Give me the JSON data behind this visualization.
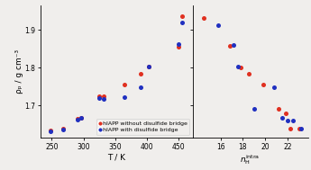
{
  "left_red_x": [
    248,
    268,
    290,
    296,
    325,
    332,
    365,
    390,
    403,
    450,
    456
  ],
  "left_red_y": [
    1.635,
    1.638,
    1.665,
    1.668,
    1.725,
    1.725,
    1.755,
    1.783,
    1.802,
    1.855,
    1.935
  ],
  "left_blue_x": [
    248,
    268,
    290,
    296,
    325,
    332,
    365,
    390,
    403,
    450,
    456
  ],
  "left_blue_y": [
    1.632,
    1.636,
    1.662,
    1.668,
    1.72,
    1.718,
    1.722,
    1.748,
    1.802,
    1.863,
    1.92
  ],
  "right_red_x": [
    14.5,
    16.8,
    17.8,
    18.5,
    19.8,
    21.2,
    21.8,
    22.2,
    23.0
  ],
  "right_red_y": [
    1.932,
    1.858,
    1.8,
    1.783,
    1.755,
    1.692,
    1.68,
    1.638,
    1.638
  ],
  "right_blue_x": [
    15.8,
    17.2,
    17.6,
    19.0,
    20.8,
    21.5,
    22.0,
    22.5,
    23.2
  ],
  "right_blue_y": [
    1.912,
    1.86,
    1.802,
    1.692,
    1.748,
    1.668,
    1.66,
    1.66,
    1.638
  ],
  "ylabel": "ρₚ / g cm⁻³",
  "xlabel_left": "T / K",
  "legend_red": "hIAPP without disulfide bridge",
  "legend_blue": "hIAPP with disulfide bridge",
  "red_color": "#e03020",
  "blue_color": "#2030c0",
  "bg_color": "#f0eeec",
  "ylim": [
    1.615,
    1.965
  ],
  "xlim_left": [
    232,
    472
  ],
  "xlim_right": [
    13.5,
    23.8
  ],
  "xticks_left": [
    250,
    300,
    350,
    400,
    450
  ],
  "xticks_right": [
    16,
    18,
    20,
    22
  ],
  "yticks": [
    1.7,
    1.8,
    1.9
  ]
}
